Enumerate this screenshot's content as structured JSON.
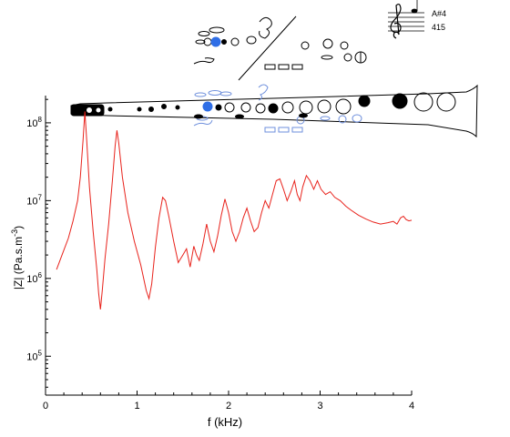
{
  "note": {
    "name": "A#4",
    "frequency": "415"
  },
  "chart_data": {
    "type": "line",
    "title": "",
    "xlabel": "f (kHz)",
    "ylabel_base": "|Z| (Pa.s.m",
    "ylabel_exp": "-3",
    "ylabel_close": ")",
    "xlim": [
      0,
      4
    ],
    "ylim_log10": [
      4.5,
      8.35
    ],
    "yscale": "log",
    "x_ticks": [
      {
        "value": 0,
        "label": "0"
      },
      {
        "value": 1,
        "label": "1"
      },
      {
        "value": 2,
        "label": "2"
      },
      {
        "value": 3,
        "label": "3"
      },
      {
        "value": 4,
        "label": "4"
      }
    ],
    "y_ticks": [
      {
        "exp": 5,
        "base": "10",
        "sup": "5"
      },
      {
        "exp": 6,
        "base": "10",
        "sup": "6"
      },
      {
        "exp": 7,
        "base": "10",
        "sup": "7"
      },
      {
        "exp": 8,
        "base": "10",
        "sup": "8"
      }
    ],
    "grid": false,
    "line_color": "#e8221b",
    "series": [
      {
        "name": "",
        "points": [
          [
            0.12,
            1300000.0
          ],
          [
            0.18,
            2000000.0
          ],
          [
            0.25,
            3300000.0
          ],
          [
            0.3,
            5500000.0
          ],
          [
            0.35,
            10000000.0
          ],
          [
            0.38,
            20000000.0
          ],
          [
            0.41,
            60000000.0
          ],
          [
            0.43,
            140000000.0
          ],
          [
            0.45,
            60000000.0
          ],
          [
            0.48,
            15000000.0
          ],
          [
            0.52,
            4000000.0
          ],
          [
            0.56,
            1300000.0
          ],
          [
            0.58,
            650000.0
          ],
          [
            0.6,
            400000.0
          ],
          [
            0.62,
            700000.0
          ],
          [
            0.65,
            1800000.0
          ],
          [
            0.69,
            5000000.0
          ],
          [
            0.73,
            18000000.0
          ],
          [
            0.76,
            50000000.0
          ],
          [
            0.78,
            80000000.0
          ],
          [
            0.8,
            55000000.0
          ],
          [
            0.84,
            20000000.0
          ],
          [
            0.9,
            7000000.0
          ],
          [
            0.97,
            3000000.0
          ],
          [
            1.04,
            1500000.0
          ],
          [
            1.1,
            700000.0
          ],
          [
            1.13,
            550000.0
          ],
          [
            1.16,
            850000.0
          ],
          [
            1.2,
            2500000.0
          ],
          [
            1.24,
            6000000.0
          ],
          [
            1.28,
            11000000.0
          ],
          [
            1.31,
            10000000.0
          ],
          [
            1.35,
            6000000.0
          ],
          [
            1.4,
            3000000.0
          ],
          [
            1.45,
            1600000.0
          ],
          [
            1.5,
            2000000.0
          ],
          [
            1.54,
            2400000.0
          ],
          [
            1.58,
            1400000.0
          ],
          [
            1.62,
            2600000.0
          ],
          [
            1.65,
            2000000.0
          ],
          [
            1.68,
            1700000.0
          ],
          [
            1.72,
            2800000.0
          ],
          [
            1.76,
            5000000.0
          ],
          [
            1.8,
            3000000.0
          ],
          [
            1.84,
            2200000.0
          ],
          [
            1.88,
            3500000.0
          ],
          [
            1.92,
            6500000.0
          ],
          [
            1.96,
            10500000.0
          ],
          [
            2.0,
            7000000.0
          ],
          [
            2.04,
            4000000.0
          ],
          [
            2.08,
            3000000.0
          ],
          [
            2.12,
            4000000.0
          ],
          [
            2.16,
            6000000.0
          ],
          [
            2.2,
            8000000.0
          ],
          [
            2.24,
            5500000.0
          ],
          [
            2.28,
            4000000.0
          ],
          [
            2.32,
            4500000.0
          ],
          [
            2.36,
            7000000.0
          ],
          [
            2.4,
            10000000.0
          ],
          [
            2.44,
            8000000.0
          ],
          [
            2.48,
            12000000.0
          ],
          [
            2.52,
            18000000.0
          ],
          [
            2.56,
            19000000.0
          ],
          [
            2.6,
            14000000.0
          ],
          [
            2.64,
            10000000.0
          ],
          [
            2.68,
            13000000.0
          ],
          [
            2.72,
            18000000.0
          ],
          [
            2.75,
            12000000.0
          ],
          [
            2.78,
            10000000.0
          ],
          [
            2.81,
            15000000.0
          ],
          [
            2.85,
            21000000.0
          ],
          [
            2.89,
            18000000.0
          ],
          [
            2.93,
            14000000.0
          ],
          [
            2.97,
            18000000.0
          ],
          [
            3.01,
            14000000.0
          ],
          [
            3.06,
            12000000.0
          ],
          [
            3.11,
            13000000.0
          ],
          [
            3.16,
            11000000.0
          ],
          [
            3.22,
            10000000.0
          ],
          [
            3.28,
            8500000.0
          ],
          [
            3.34,
            7500000.0
          ],
          [
            3.42,
            6500000.0
          ],
          [
            3.5,
            5800000.0
          ],
          [
            3.58,
            5300000.0
          ],
          [
            3.66,
            5000000.0
          ],
          [
            3.74,
            5200000.0
          ],
          [
            3.8,
            5400000.0
          ],
          [
            3.84,
            5000000.0
          ],
          [
            3.88,
            6000000.0
          ],
          [
            3.91,
            6300000.0
          ],
          [
            3.94,
            5700000.0
          ],
          [
            3.97,
            5500000.0
          ],
          [
            4.0,
            5600000.0
          ]
        ]
      }
    ]
  }
}
